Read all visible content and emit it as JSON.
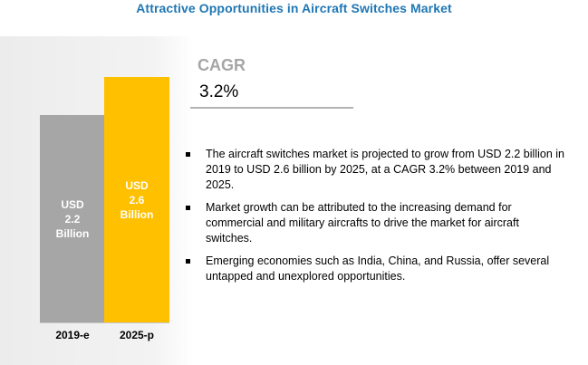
{
  "header": {
    "title": "Attractive Opportunities in Aircraft Switches Market"
  },
  "chart_data": {
    "type": "bar",
    "categories": [
      "2019-e",
      "2025-p"
    ],
    "values": [
      2.2,
      2.6
    ],
    "unit": "USD Billion",
    "bar_labels": [
      "USD\n2.2\nBillion",
      "USD\n2.6\nBillion"
    ],
    "colors": [
      "#a6a6a6",
      "#ffc000"
    ],
    "ylim": [
      0,
      2.6
    ]
  },
  "cagr": {
    "label": "CAGR",
    "value": "3.2%"
  },
  "bullets": [
    "The aircraft switches market is projected to grow from USD 2.2 billion in 2019 to USD 2.6 billion by 2025, at a CAGR 3.2%  between 2019 and 2025.",
    "Market growth can be attributed to the increasing demand for commercial and military aircrafts to drive the market for aircraft switches.",
    "Emerging economies such as India, China, and Russia, offer several untapped and unexplored opportunities."
  ]
}
